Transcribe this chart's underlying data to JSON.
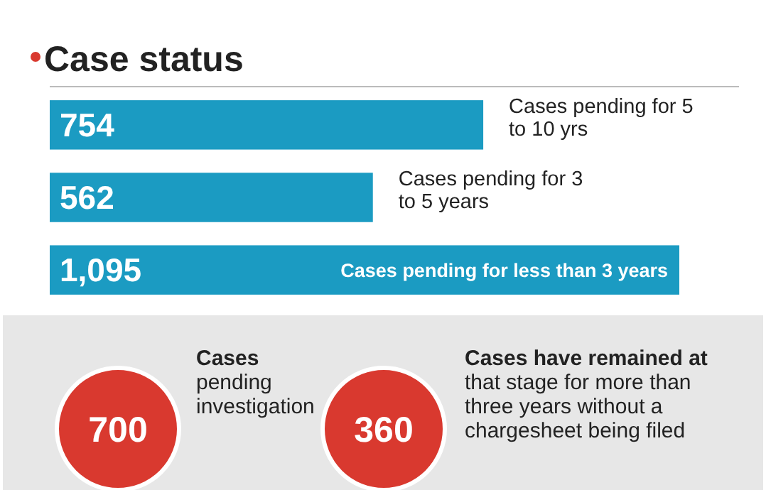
{
  "chart_data": [
    {
      "type": "bar",
      "title": "Case status",
      "orientation": "horizontal",
      "data_labels": true,
      "color": "#1b9bc2",
      "categories": [
        "Cases pending for 5 to 10 yrs",
        "Cases pending for 3 to 5 years",
        "Cases pending for less than 3 years"
      ],
      "values": [
        754,
        562,
        1095
      ],
      "value_labels": [
        "754",
        "562",
        "1,095"
      ]
    },
    {
      "type": "other",
      "colors": [
        "#d9392f",
        "#d9392f"
      ],
      "annotations": [
        "700",
        "Cases pending investigation",
        "360",
        "Cases have remained at that stage for more than three years without a chargesheet being filed"
      ]
    }
  ]
}
